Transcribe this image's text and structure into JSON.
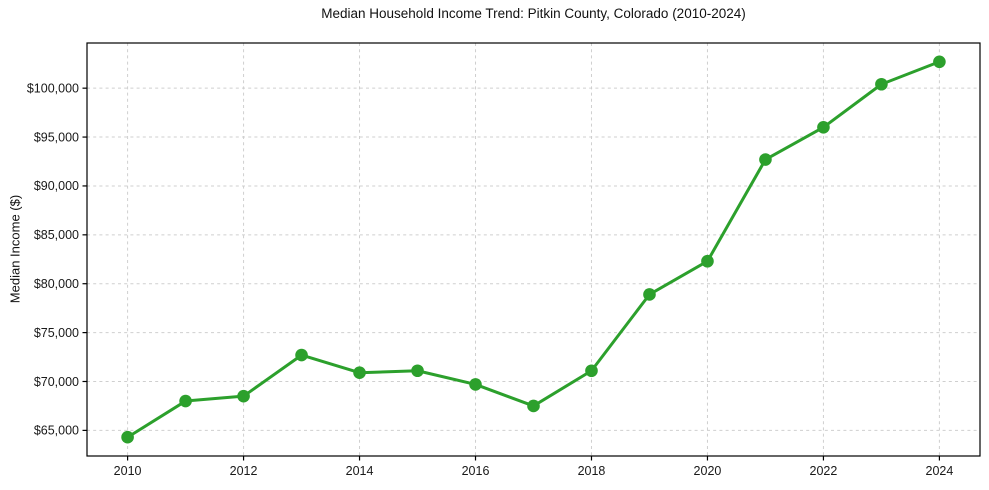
{
  "figure": {
    "background": "#ffffff"
  },
  "chart_data": {
    "type": "line",
    "title": "Median Household Income Trend: Pitkin County, Colorado (2010-2024)",
    "xlabel": "",
    "ylabel": "Median Income ($)",
    "x": [
      2010,
      2011,
      2012,
      2013,
      2014,
      2015,
      2016,
      2017,
      2018,
      2019,
      2020,
      2021,
      2022,
      2023,
      2024
    ],
    "values": [
      64300,
      68000,
      68500,
      72700,
      70900,
      71100,
      69700,
      67500,
      71100,
      78900,
      82300,
      92700,
      96000,
      100400,
      102700
    ],
    "line_color": "#2ca02c",
    "marker": "circle",
    "marker_color": "#2ca02c",
    "xlim": [
      2009.3,
      2024.7
    ],
    "ylim": [
      62380,
      104620
    ],
    "x_ticks": [
      2010,
      2012,
      2014,
      2016,
      2018,
      2020,
      2022,
      2024
    ],
    "x_tick_labels": [
      "2010",
      "2012",
      "2014",
      "2016",
      "2018",
      "2020",
      "2022",
      "2024"
    ],
    "y_ticks": [
      65000,
      70000,
      75000,
      80000,
      85000,
      90000,
      95000,
      100000
    ],
    "y_tick_labels": [
      "$65,000",
      "$70,000",
      "$75,000",
      "$80,000",
      "$85,000",
      "$90,000",
      "$95,000",
      "$100,000"
    ],
    "grid": true,
    "grid_color": "#cfcfcf",
    "grid_style": "dashed",
    "axis_color": "#000000",
    "legend": "none"
  }
}
